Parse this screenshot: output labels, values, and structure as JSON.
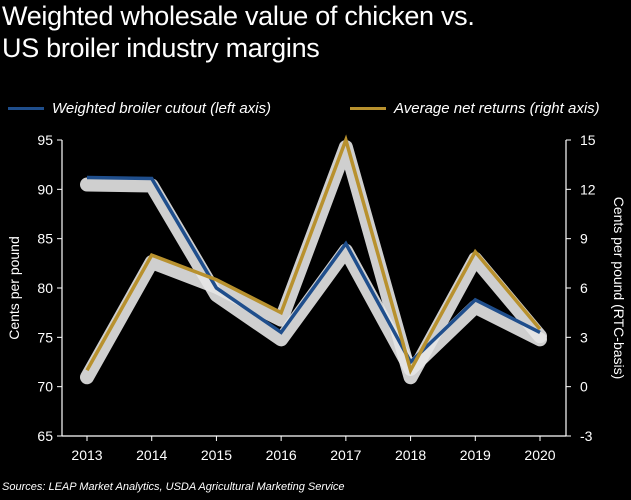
{
  "chart_data": {
    "type": "line",
    "title": "Weighted wholesale value of chicken vs.\nUS broiler industry margins",
    "categories": [
      "2013",
      "2014",
      "2015",
      "2016",
      "2017",
      "2018",
      "2019",
      "2020"
    ],
    "series": [
      {
        "name": "Weighted broiler cutout (left axis)",
        "axis": "left",
        "color": "#1f4e8c",
        "values": [
          91.2,
          91.1,
          80.0,
          75.5,
          84.5,
          72.5,
          78.8,
          75.5
        ]
      },
      {
        "name": "Average net returns (right axis)",
        "axis": "right",
        "color": "#b8912e",
        "values": [
          1.0,
          8.0,
          6.5,
          4.5,
          15.0,
          1.0,
          8.2,
          3.5
        ]
      }
    ],
    "ylabel": "Cents per pound",
    "y2label": "Cents per pound (RTC-basis)",
    "ylim": [
      65,
      95
    ],
    "y2lim": [
      -3,
      15
    ],
    "yticks": [
      "95",
      "90",
      "85",
      "80",
      "75",
      "70",
      "65"
    ],
    "y2ticks": [
      "15",
      "12",
      "9",
      "6",
      "3",
      "0",
      "-3"
    ],
    "grid": false,
    "legend": "top"
  },
  "source": "Sources: LEAP Market Analytics, USDA Agricultural Marketing Service",
  "colors": {
    "background": "#000000",
    "text": "#ffffff",
    "axis": "#ffffff",
    "shadow": "#e6e6e6"
  }
}
